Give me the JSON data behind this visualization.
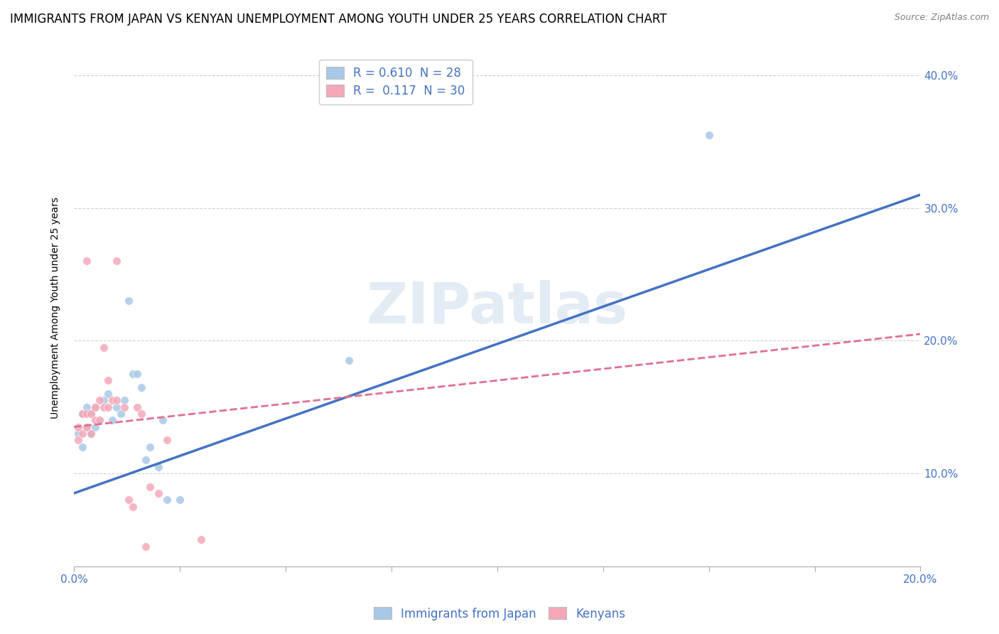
{
  "title": "IMMIGRANTS FROM JAPAN VS KENYAN UNEMPLOYMENT AMONG YOUTH UNDER 25 YEARS CORRELATION CHART",
  "source": "Source: ZipAtlas.com",
  "ylabel": "Unemployment Among Youth under 25 years",
  "xlim": [
    0.0,
    0.2
  ],
  "ylim": [
    0.03,
    0.42
  ],
  "watermark": "ZIPatlas",
  "legend_entries": [
    {
      "label": "R = 0.610  N = 28"
    },
    {
      "label": "R =  0.117  N = 30"
    }
  ],
  "bottom_legend": [
    "Immigrants from Japan",
    "Kenyans"
  ],
  "blue_scatter": [
    [
      0.001,
      0.13
    ],
    [
      0.002,
      0.12
    ],
    [
      0.002,
      0.145
    ],
    [
      0.003,
      0.135
    ],
    [
      0.003,
      0.15
    ],
    [
      0.004,
      0.145
    ],
    [
      0.004,
      0.13
    ],
    [
      0.005,
      0.15
    ],
    [
      0.005,
      0.135
    ],
    [
      0.006,
      0.14
    ],
    [
      0.007,
      0.155
    ],
    [
      0.008,
      0.16
    ],
    [
      0.009,
      0.14
    ],
    [
      0.01,
      0.15
    ],
    [
      0.011,
      0.145
    ],
    [
      0.012,
      0.155
    ],
    [
      0.013,
      0.23
    ],
    [
      0.014,
      0.175
    ],
    [
      0.015,
      0.175
    ],
    [
      0.016,
      0.165
    ],
    [
      0.017,
      0.11
    ],
    [
      0.018,
      0.12
    ],
    [
      0.02,
      0.105
    ],
    [
      0.021,
      0.14
    ],
    [
      0.022,
      0.08
    ],
    [
      0.025,
      0.08
    ],
    [
      0.065,
      0.185
    ],
    [
      0.15,
      0.355
    ]
  ],
  "pink_scatter": [
    [
      0.001,
      0.135
    ],
    [
      0.001,
      0.125
    ],
    [
      0.002,
      0.13
    ],
    [
      0.002,
      0.145
    ],
    [
      0.003,
      0.135
    ],
    [
      0.003,
      0.145
    ],
    [
      0.003,
      0.26
    ],
    [
      0.004,
      0.13
    ],
    [
      0.004,
      0.145
    ],
    [
      0.005,
      0.14
    ],
    [
      0.005,
      0.15
    ],
    [
      0.006,
      0.14
    ],
    [
      0.006,
      0.155
    ],
    [
      0.007,
      0.15
    ],
    [
      0.007,
      0.195
    ],
    [
      0.008,
      0.15
    ],
    [
      0.008,
      0.17
    ],
    [
      0.009,
      0.155
    ],
    [
      0.01,
      0.155
    ],
    [
      0.01,
      0.26
    ],
    [
      0.012,
      0.15
    ],
    [
      0.013,
      0.08
    ],
    [
      0.014,
      0.075
    ],
    [
      0.015,
      0.15
    ],
    [
      0.016,
      0.145
    ],
    [
      0.017,
      0.045
    ],
    [
      0.018,
      0.09
    ],
    [
      0.02,
      0.085
    ],
    [
      0.022,
      0.125
    ],
    [
      0.03,
      0.05
    ]
  ],
  "blue_color": "#a8c8e8",
  "pink_color": "#f4a8b8",
  "blue_line_color": "#4472c4",
  "pink_line_color": "#e07090",
  "grid_color": "#d0d0d0",
  "background_color": "#ffffff",
  "title_fontsize": 12,
  "axis_label_fontsize": 10,
  "tick_fontsize": 11,
  "legend_fontsize": 12,
  "blue_trend": [
    0.0,
    0.085,
    0.2,
    0.31
  ],
  "pink_trend": [
    0.0,
    0.135,
    0.2,
    0.205
  ]
}
